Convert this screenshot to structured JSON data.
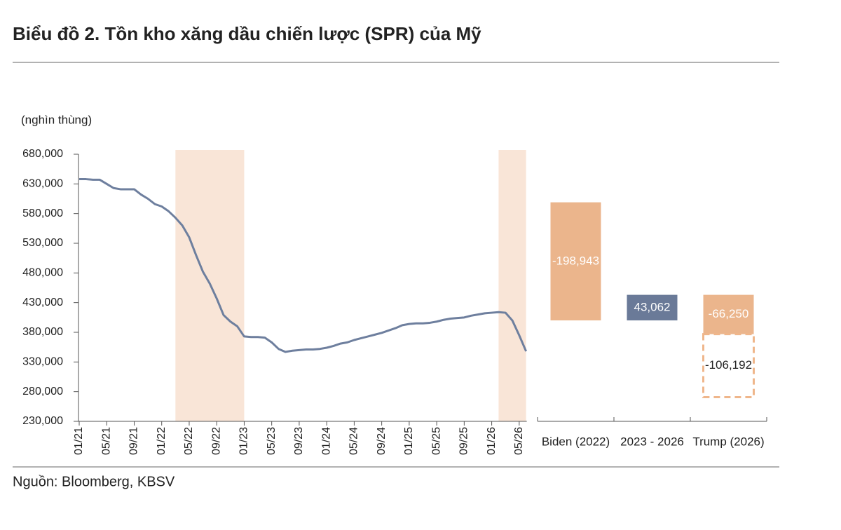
{
  "title": "Biểu đồ 2. Tồn kho xăng dầu chiến lược (SPR) của Mỹ",
  "source": "Nguồn: Bloomberg, KBSV",
  "chart_data": [
    {
      "type": "line",
      "y_label": "(nghìn thùng)",
      "color": "#6e7f9e",
      "shade_color": "#f9e5d7",
      "categories": [
        "01/21",
        "02/21",
        "03/21",
        "04/21",
        "05/21",
        "06/21",
        "07/21",
        "08/21",
        "09/21",
        "10/21",
        "11/21",
        "12/21",
        "01/22",
        "02/22",
        "03/22",
        "04/22",
        "05/22",
        "06/22",
        "07/22",
        "08/22",
        "09/22",
        "10/22",
        "11/22",
        "12/22",
        "01/23",
        "02/23",
        "03/23",
        "04/23",
        "05/23",
        "06/23",
        "07/23",
        "08/23",
        "09/23",
        "10/23",
        "11/23",
        "12/23",
        "01/24",
        "02/24",
        "03/24",
        "04/24",
        "05/24",
        "06/24",
        "07/24",
        "08/24",
        "09/24",
        "10/24",
        "11/24",
        "12/24",
        "01/25",
        "02/25",
        "03/25",
        "04/25",
        "05/25",
        "06/25",
        "07/25",
        "08/25",
        "09/25",
        "10/25",
        "11/25",
        "12/25",
        "01/26",
        "02/26",
        "03/26",
        "04/26",
        "05/26",
        "06/26"
      ],
      "values": [
        638000,
        638000,
        637000,
        637000,
        630000,
        623000,
        621000,
        621000,
        621000,
        612000,
        605000,
        596000,
        592000,
        584000,
        573000,
        560000,
        540000,
        510000,
        482000,
        462000,
        437000,
        409000,
        398000,
        390000,
        373000,
        372000,
        372000,
        371000,
        363000,
        352000,
        347000,
        349000,
        350000,
        351000,
        351000,
        352000,
        354000,
        357000,
        361000,
        363000,
        367000,
        370000,
        373000,
        376000,
        379000,
        383000,
        387000,
        392000,
        394000,
        395000,
        395000,
        396000,
        398000,
        401000,
        403000,
        404000,
        405000,
        408000,
        410000,
        412000,
        413000,
        414000,
        413000,
        400000,
        375000,
        348000
      ],
      "xticks": [
        "01/21",
        "05/21",
        "09/21",
        "01/22",
        "05/22",
        "09/22",
        "01/23",
        "05/23",
        "09/23",
        "01/24",
        "05/24",
        "09/24",
        "01/25",
        "05/25",
        "09/25",
        "01/26",
        "05/26"
      ],
      "shaded_ranges": [
        [
          "03/22",
          "01/23"
        ],
        [
          "02/26",
          "06/26"
        ]
      ],
      "ylim": [
        230000,
        680000
      ],
      "yticks": [
        {
          "value": 230000,
          "label": "230,000"
        },
        {
          "value": 280000,
          "label": "280,000"
        },
        {
          "value": 330000,
          "label": "330,000"
        },
        {
          "value": 380000,
          "label": "380,000"
        },
        {
          "value": 430000,
          "label": "430,000"
        },
        {
          "value": 480000,
          "label": "480,000"
        },
        {
          "value": 530000,
          "label": "530,000"
        },
        {
          "value": 580000,
          "label": "580,000"
        },
        {
          "value": 630000,
          "label": "630,000"
        },
        {
          "value": 680000,
          "label": "680,000"
        }
      ]
    },
    {
      "type": "waterfall",
      "categories": [
        "Biden (2022)",
        "2023 - 2026",
        "Trump (2026)"
      ],
      "start": 599000,
      "values": [
        -198943,
        43062,
        -66250
      ],
      "value_labels": [
        "-198,943",
        "43,062",
        "-66,250"
      ],
      "colors": [
        "#ebb58c",
        "#6a7a98",
        "#ebb58c"
      ],
      "extension": {
        "value": -106192,
        "value_label": "-106,192",
        "color": "#efb68b",
        "style": "dashed"
      }
    }
  ]
}
